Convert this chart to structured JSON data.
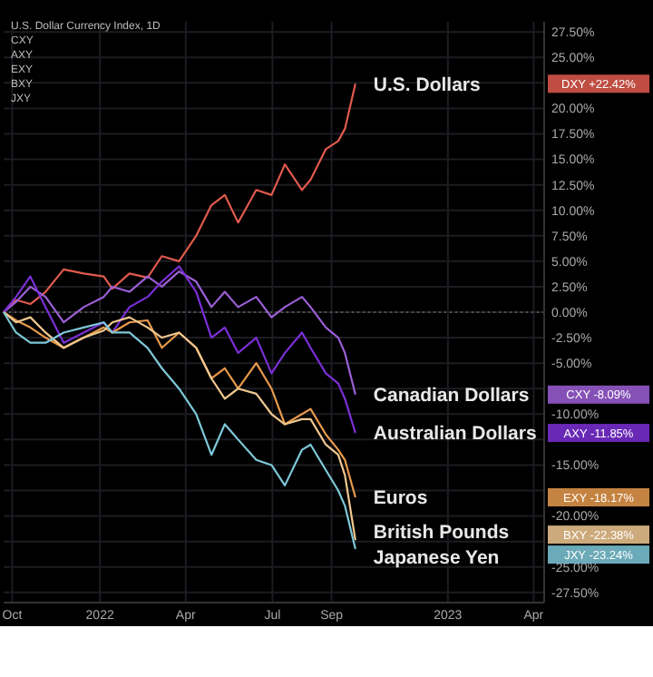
{
  "chart_data": {
    "type": "line",
    "x": [
      "2021-09-22",
      "2021-10-05",
      "2021-10-20",
      "2021-11-05",
      "2021-11-24",
      "2021-12-15",
      "2022-01-05",
      "2022-01-14",
      "2022-02-01",
      "2022-02-20",
      "2022-03-07",
      "2022-03-25",
      "2022-04-12",
      "2022-04-28",
      "2022-05-12",
      "2022-05-26",
      "2022-06-14",
      "2022-06-30",
      "2022-07-14",
      "2022-08-01",
      "2022-08-10",
      "2022-08-26",
      "2022-09-08",
      "2022-09-15",
      "2022-09-26"
    ],
    "series": [
      {
        "name": "U.S. Dollars",
        "color": "#e05a4e",
        "values": [
          0,
          1.2,
          0.8,
          2.0,
          4.2,
          3.8,
          3.5,
          2.3,
          3.8,
          3.4,
          5.5,
          5.0,
          7.5,
          10.5,
          11.5,
          8.8,
          12.0,
          11.5,
          14.5,
          12.0,
          13.0,
          16.0,
          16.8,
          18.0,
          22.42
        ]
      },
      {
        "name": "Canadian Dollars",
        "color": "#9c5fd6",
        "values": [
          0,
          1.0,
          2.5,
          1.5,
          -1.0,
          0.5,
          1.5,
          2.5,
          2.0,
          3.5,
          2.5,
          4.0,
          3.0,
          0.5,
          2.0,
          0.5,
          1.5,
          -0.5,
          0.5,
          1.5,
          0.5,
          -1.5,
          -2.5,
          -4.0,
          -8.09
        ]
      },
      {
        "name": "Australian Dollars",
        "color": "#7b2fd6",
        "values": [
          0,
          1.5,
          3.5,
          0.5,
          -3.0,
          -2.0,
          -1.0,
          -2.0,
          0.5,
          1.5,
          3.0,
          4.5,
          2.0,
          -2.5,
          -1.5,
          -4.0,
          -2.5,
          -6.0,
          -4.0,
          -2.0,
          -3.5,
          -6.0,
          -7.0,
          -8.5,
          -11.85
        ]
      },
      {
        "name": "Euros",
        "color": "#e89a4c",
        "values": [
          0,
          -0.8,
          -1.5,
          -2.5,
          -3.5,
          -2.5,
          -1.5,
          -2.0,
          -1.0,
          -0.8,
          -3.5,
          -2.0,
          -3.5,
          -6.5,
          -5.5,
          -7.5,
          -5.0,
          -7.5,
          -11.0,
          -10.0,
          -9.5,
          -12.0,
          -13.5,
          -14.5,
          -18.17
        ]
      },
      {
        "name": "British Pounds",
        "color": "#f0c890",
        "values": [
          0,
          -1.0,
          -0.5,
          -2.0,
          -3.5,
          -2.5,
          -1.8,
          -1.0,
          -0.5,
          -1.5,
          -2.5,
          -2.0,
          -3.5,
          -6.5,
          -8.5,
          -7.5,
          -8.0,
          -10.0,
          -11.0,
          -10.5,
          -10.5,
          -13.0,
          -14.0,
          -16.0,
          -22.38
        ]
      },
      {
        "name": "Japanese Yen",
        "color": "#7ec8d8",
        "values": [
          0,
          -2.0,
          -3.0,
          -3.0,
          -2.0,
          -1.5,
          -1.0,
          -2.0,
          -2.0,
          -3.5,
          -5.5,
          -7.5,
          -10.0,
          -14.0,
          -11.0,
          -12.5,
          -14.5,
          -15.0,
          -17.0,
          -13.5,
          -13.0,
          -15.5,
          -17.5,
          -19.0,
          -23.24
        ]
      }
    ],
    "xlim": [
      "2021-09-22",
      "2023-04-12"
    ],
    "xticks": [
      {
        "value": "2021-10-01",
        "label": "Oct"
      },
      {
        "value": "2022-01-01",
        "label": "2022"
      },
      {
        "value": "2022-04-01",
        "label": "Apr"
      },
      {
        "value": "2022-07-01",
        "label": "Jul"
      },
      {
        "value": "2022-09-01",
        "label": "Sep"
      },
      {
        "value": "2023-01-01",
        "label": "2023"
      },
      {
        "value": "2023-04-01",
        "label": "Apr"
      }
    ],
    "ylim": [
      -28.5,
      28.5
    ],
    "yticks": [
      {
        "value": 27.5,
        "label": "27.50%"
      },
      {
        "value": 25,
        "label": "25.00%"
      },
      {
        "value": 22.5,
        "label": null
      },
      {
        "value": 20,
        "label": "20.00%"
      },
      {
        "value": 17.5,
        "label": "17.50%"
      },
      {
        "value": 15,
        "label": "15.00%"
      },
      {
        "value": 12.5,
        "label": "12.50%"
      },
      {
        "value": 10,
        "label": "10.00%"
      },
      {
        "value": 7.5,
        "label": "7.50%"
      },
      {
        "value": 5,
        "label": "5.00%"
      },
      {
        "value": 2.5,
        "label": "2.50%"
      },
      {
        "value": 0,
        "label": "0.00%"
      },
      {
        "value": -2.5,
        "label": "-2.50%"
      },
      {
        "value": -5,
        "label": "-5.00%"
      },
      {
        "value": -7.5,
        "label": null
      },
      {
        "value": -10,
        "label": "-10.00%"
      },
      {
        "value": -12.5,
        "label": null
      },
      {
        "value": -15,
        "label": "-15.00%"
      },
      {
        "value": -17.5,
        "label": null
      },
      {
        "value": -20,
        "label": "-20.00%"
      },
      {
        "value": -22.5,
        "label": null
      },
      {
        "value": -25,
        "label": "-25.00%"
      },
      {
        "value": -27.5,
        "label": "-27.50%"
      }
    ],
    "grid": true,
    "ref_lines": [
      {
        "axis": "y",
        "value": 0,
        "color": "#555555",
        "line_style": "dotted"
      }
    ],
    "legend": false,
    "annotations": [
      "U.S. Dollar Currency Index, 1D",
      "CXY",
      "AXY",
      "EXY",
      "BXY",
      "JXY",
      "DXY  +22.42%",
      "CXY  -8.09%",
      "AXY  -11.85%",
      "EXY  -18.17%",
      "BXY  -22.38%",
      "JXY  -23.24%"
    ]
  }
}
